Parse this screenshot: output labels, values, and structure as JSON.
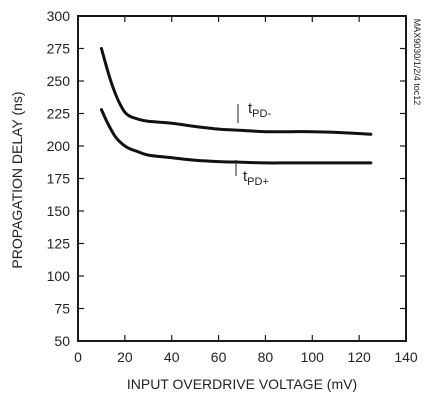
{
  "chart_data": {
    "type": "line",
    "xlabel": "INPUT OVERDRIVE VOLTAGE (mV)",
    "ylabel": "PROPAGATION DELAY (ns)",
    "xlim": [
      0,
      140
    ],
    "ylim": [
      50,
      300
    ],
    "xticks": [
      0,
      20,
      40,
      60,
      80,
      100,
      120,
      140
    ],
    "yticks": [
      50,
      75,
      100,
      125,
      150,
      175,
      200,
      225,
      250,
      275,
      300
    ],
    "grid": false,
    "side_label": "MAX9030/1/2/4 toc12",
    "series": [
      {
        "name_main": "t",
        "name_sub": "PD-",
        "x": [
          10,
          12,
          14,
          16,
          18,
          20,
          22,
          25,
          30,
          40,
          50,
          60,
          70,
          80,
          90,
          100,
          110,
          125
        ],
        "y": [
          275,
          262,
          250,
          240,
          232,
          226,
          223,
          221,
          219,
          217.5,
          215,
          213,
          212,
          211,
          211,
          211,
          210.5,
          209
        ]
      },
      {
        "name_main": "t",
        "name_sub": "PD+",
        "x": [
          10,
          12,
          14,
          16,
          18,
          20,
          22,
          25,
          30,
          40,
          50,
          60,
          70,
          80,
          90,
          100,
          110,
          125
        ],
        "y": [
          228,
          220,
          213,
          207,
          203,
          200,
          198,
          196,
          193,
          191,
          189,
          188,
          187.5,
          187,
          187,
          187,
          187,
          187
        ]
      }
    ]
  }
}
